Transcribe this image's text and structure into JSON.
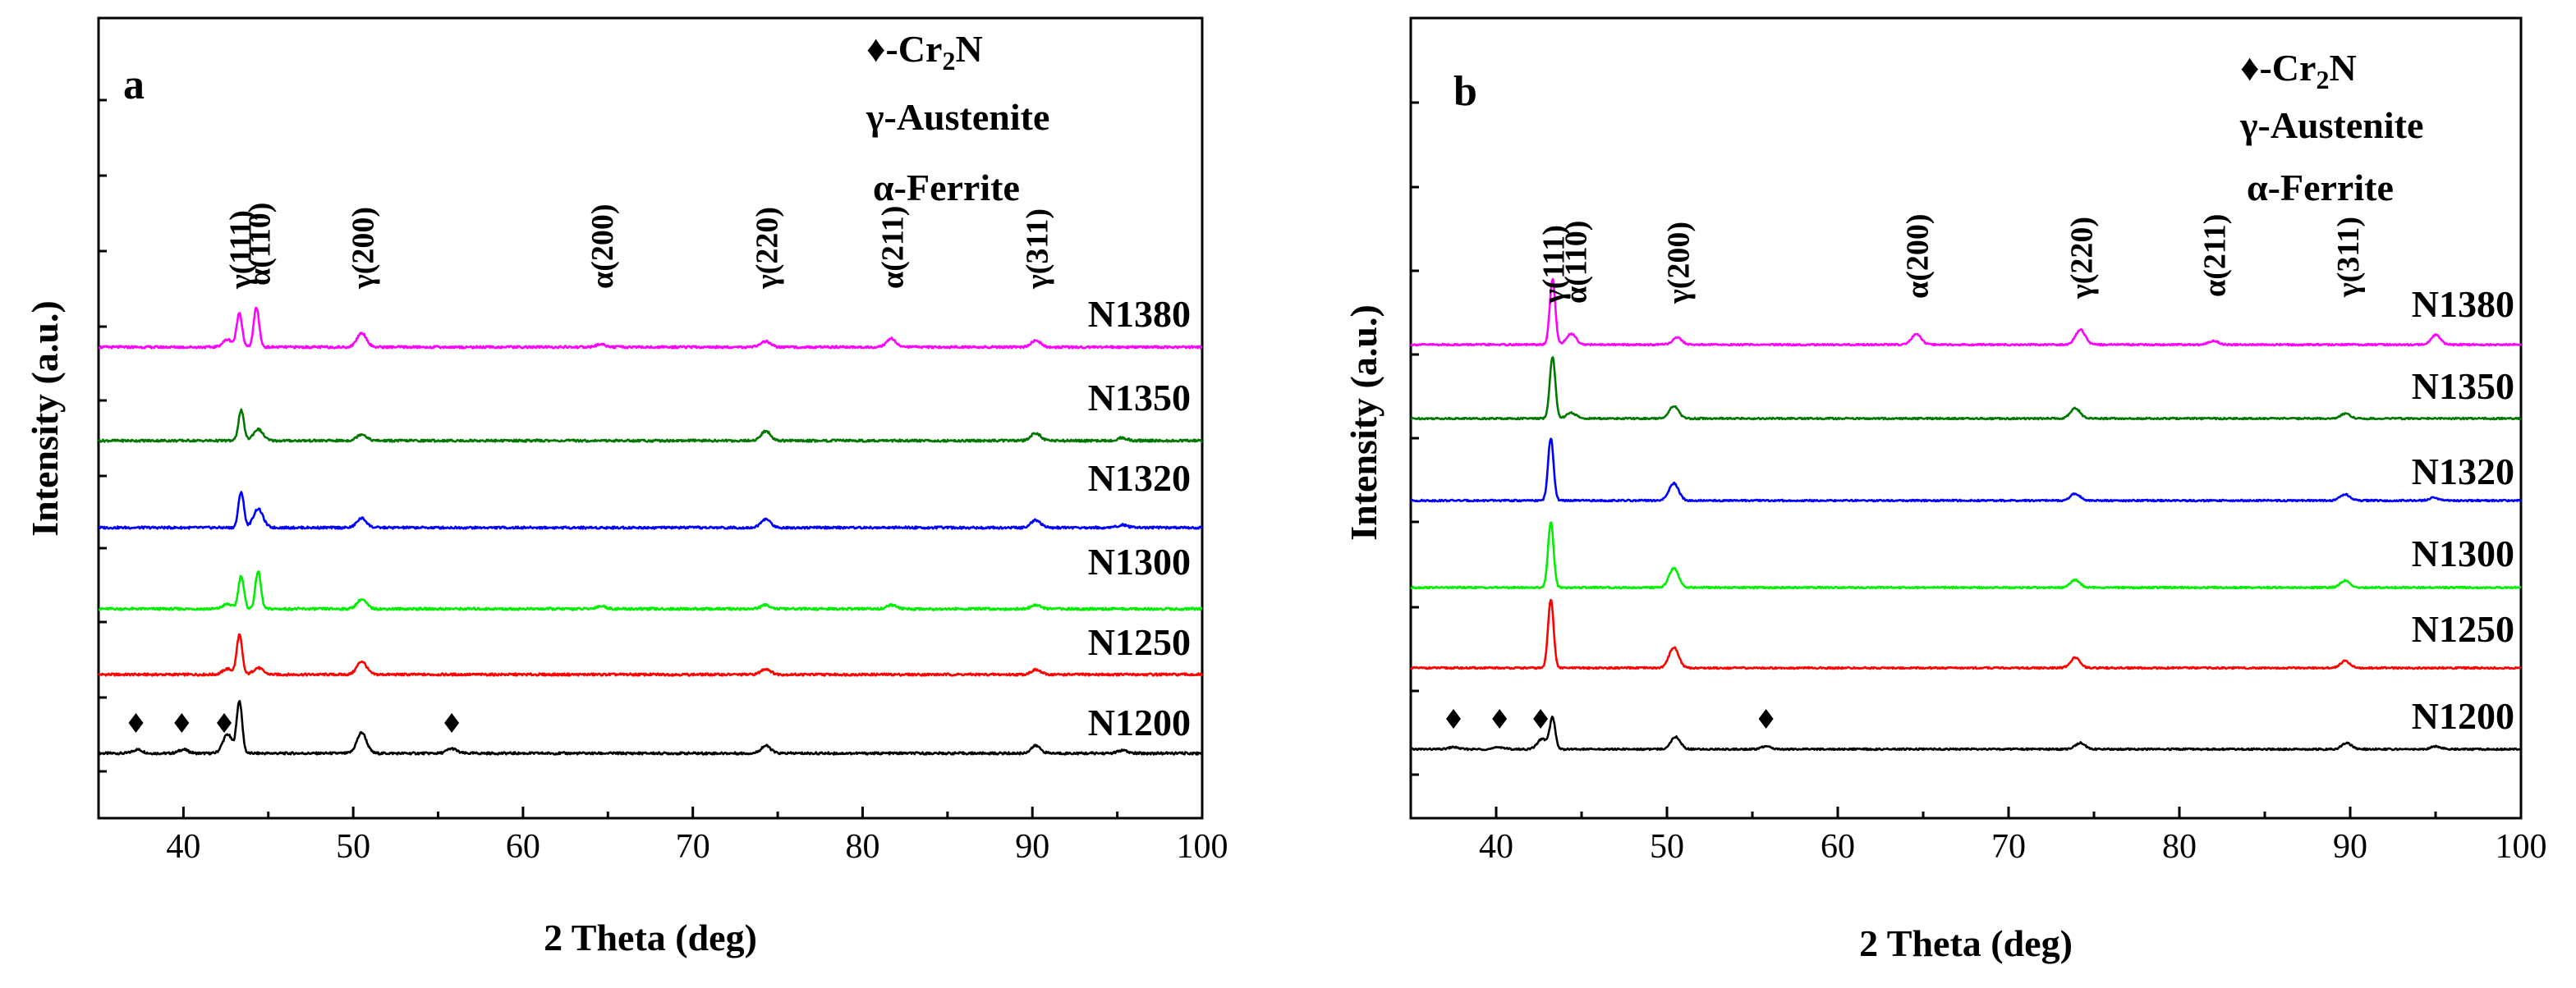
{
  "chart_data": [
    {
      "type": "line",
      "panel_label": "a",
      "xlabel": "2 Theta (deg)",
      "ylabel": "Intensity (a.u.)",
      "xlim": [
        35,
        100
      ],
      "xticks": [
        40,
        50,
        60,
        70,
        80,
        90,
        100
      ],
      "legend": {
        "marker": "♦",
        "items": [
          {
            "prefix": "-Cr",
            "sub": "2",
            "suffix": "N"
          },
          {
            "text": "γ-Austenite"
          },
          {
            "text": "α-Ferrite"
          }
        ]
      },
      "peak_labels": [
        {
          "label": "γ(111)",
          "x": 43.3
        },
        {
          "label": "α(110)",
          "x": 44.4
        },
        {
          "label": "γ(200)",
          "x": 50.5
        },
        {
          "label": "α(200)",
          "x": 64.6
        },
        {
          "label": "γ(220)",
          "x": 74.3
        },
        {
          "label": "α(211)",
          "x": 81.7
        },
        {
          "label": "γ(311)",
          "x": 90.2
        }
      ],
      "cr2n_marker_x": [
        37.2,
        39.9,
        42.4,
        55.8
      ],
      "series": [
        {
          "name": "N1200",
          "color": "#000000",
          "peaks": [
            [
              37.3,
              4
            ],
            [
              40.0,
              4
            ],
            [
              42.6,
              20
            ],
            [
              43.3,
              55
            ],
            [
              50.5,
              22
            ],
            [
              55.8,
              5
            ],
            [
              74.3,
              8
            ],
            [
              90.2,
              8
            ],
            [
              95.3,
              3
            ]
          ]
        },
        {
          "name": "N1250",
          "color": "#ff0000",
          "peaks": [
            [
              42.6,
              6
            ],
            [
              43.3,
              42
            ],
            [
              44.4,
              7
            ],
            [
              50.5,
              14
            ],
            [
              74.3,
              6
            ],
            [
              90.2,
              5
            ]
          ]
        },
        {
          "name": "N1300",
          "color": "#00ee00",
          "peaks": [
            [
              42.6,
              5
            ],
            [
              43.4,
              35
            ],
            [
              44.4,
              40
            ],
            [
              50.5,
              10
            ],
            [
              64.6,
              3
            ],
            [
              74.3,
              4
            ],
            [
              81.7,
              4
            ],
            [
              90.2,
              4
            ]
          ]
        },
        {
          "name": "N1320",
          "color": "#0000ff",
          "peaks": [
            [
              43.4,
              38
            ],
            [
              44.4,
              20
            ],
            [
              50.5,
              10
            ],
            [
              74.3,
              9
            ],
            [
              90.2,
              8
            ],
            [
              95.3,
              3
            ]
          ]
        },
        {
          "name": "N1350",
          "color": "#007800",
          "peaks": [
            [
              43.4,
              32
            ],
            [
              44.4,
              12
            ],
            [
              50.5,
              7
            ],
            [
              74.3,
              10
            ],
            [
              90.2,
              8
            ],
            [
              95.3,
              3
            ]
          ]
        },
        {
          "name": "N1380",
          "color": "#ff00ff",
          "peaks": [
            [
              42.6,
              8
            ],
            [
              43.3,
              36
            ],
            [
              44.3,
              42
            ],
            [
              50.5,
              15
            ],
            [
              64.6,
              3
            ],
            [
              74.3,
              6
            ],
            [
              81.7,
              9
            ],
            [
              90.2,
              7
            ]
          ]
        }
      ]
    },
    {
      "type": "line",
      "panel_label": "b",
      "xlabel": "2 Theta (deg)",
      "ylabel": "Intensity (a.u.)",
      "xlim": [
        35,
        100
      ],
      "xticks": [
        40,
        50,
        60,
        70,
        80,
        90,
        100
      ],
      "legend": {
        "marker": "♦",
        "items": [
          {
            "prefix": "-Cr",
            "sub": "2",
            "suffix": "N"
          },
          {
            "text": "γ-Austenite"
          },
          {
            "text": "α-Ferrite"
          }
        ]
      },
      "peak_labels": [
        {
          "label": "γ(111)",
          "x": 43.3
        },
        {
          "label": "α(110)",
          "x": 44.6
        },
        {
          "label": "γ(200)",
          "x": 50.6
        },
        {
          "label": "α(200)",
          "x": 64.6
        },
        {
          "label": "γ(220)",
          "x": 74.2
        },
        {
          "label": "α(211)",
          "x": 82.0
        },
        {
          "label": "γ(311)",
          "x": 89.8
        }
      ],
      "cr2n_marker_x": [
        37.5,
        40.2,
        42.6,
        55.8
      ],
      "series": [
        {
          "name": "N1200",
          "color": "#000000",
          "peaks": [
            [
              37.5,
              3
            ],
            [
              40.2,
              3
            ],
            [
              42.7,
              15
            ],
            [
              43.3,
              45
            ],
            [
              50.5,
              18
            ],
            [
              55.8,
              4
            ],
            [
              74.2,
              9
            ],
            [
              89.8,
              9
            ],
            [
              95.0,
              4
            ]
          ]
        },
        {
          "name": "N1250",
          "color": "#ff0000",
          "peaks": [
            [
              43.2,
              100
            ],
            [
              50.4,
              30
            ],
            [
              73.9,
              15
            ],
            [
              89.7,
              10
            ]
          ]
        },
        {
          "name": "N1300",
          "color": "#00ee00",
          "peaks": [
            [
              43.2,
              95
            ],
            [
              50.4,
              28
            ],
            [
              73.9,
              11
            ],
            [
              89.7,
              10
            ]
          ]
        },
        {
          "name": "N1320",
          "color": "#0000ff",
          "peaks": [
            [
              43.2,
              90
            ],
            [
              50.4,
              25
            ],
            [
              73.9,
              10
            ],
            [
              89.7,
              9
            ],
            [
              94.9,
              4
            ]
          ]
        },
        {
          "name": "N1350",
          "color": "#007800",
          "peaks": [
            [
              43.3,
              90
            ],
            [
              44.4,
              8
            ],
            [
              50.4,
              18
            ],
            [
              73.9,
              15
            ],
            [
              89.7,
              7
            ]
          ]
        },
        {
          "name": "N1380",
          "color": "#ff00ff",
          "peaks": [
            [
              43.3,
              95
            ],
            [
              44.4,
              16
            ],
            [
              50.6,
              10
            ],
            [
              64.6,
              15
            ],
            [
              74.2,
              22
            ],
            [
              82.0,
              5
            ],
            [
              95.0,
              14
            ]
          ]
        }
      ]
    }
  ]
}
